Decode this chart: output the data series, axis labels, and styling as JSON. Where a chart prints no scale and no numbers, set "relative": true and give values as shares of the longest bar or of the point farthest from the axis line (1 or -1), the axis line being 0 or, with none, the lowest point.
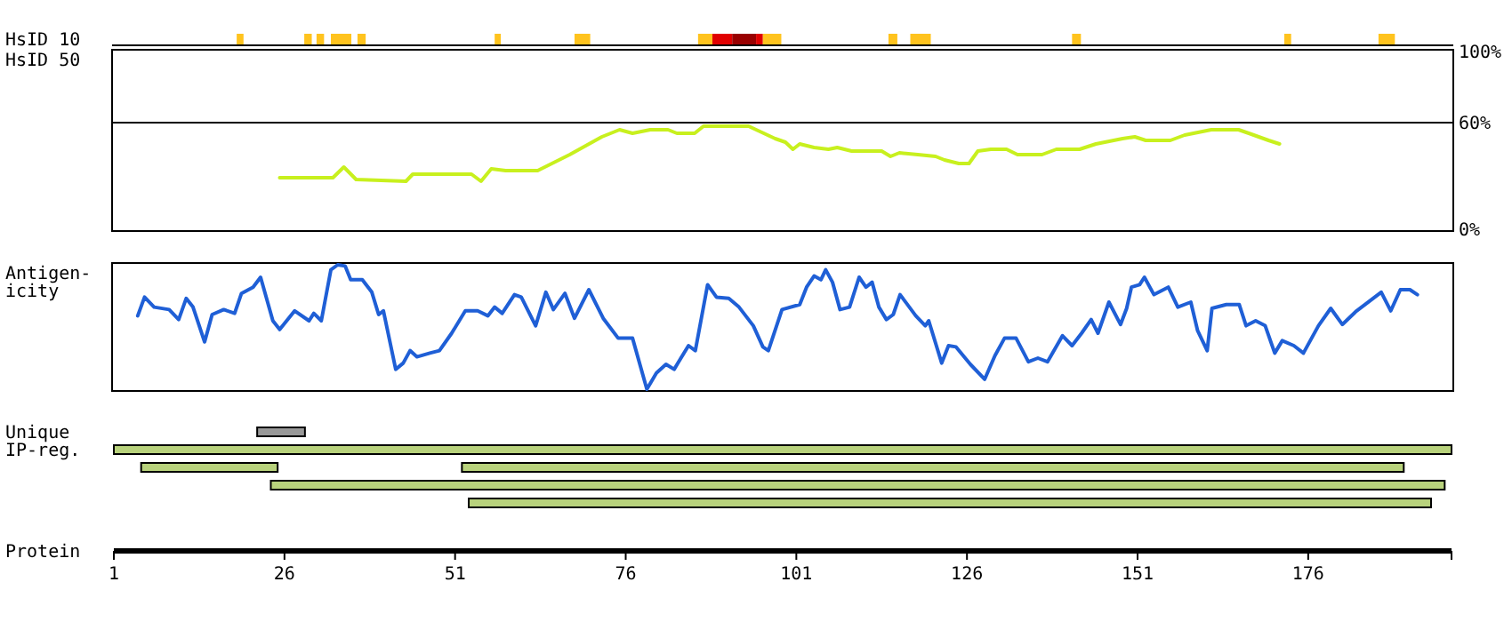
{
  "chart_data": [
    {
      "type": "bar",
      "orientation": "horizontal",
      "categories": [
        "HsID 10"
      ],
      "xlim": [
        1,
        197
      ],
      "tick_labels": "y",
      "series": [
        {
          "base": [
            19.0
          ],
          "values": [
            1.0
          ],
          "color": "#ffc31e"
        },
        {
          "base": [
            28.9
          ],
          "values": [
            1.1
          ],
          "color": "#ffc31e"
        },
        {
          "base": [
            30.7
          ],
          "values": [
            1.1
          ],
          "color": "#ffc31e"
        },
        {
          "base": [
            32.8
          ],
          "values": [
            3.0
          ],
          "color": "#ffc31e"
        },
        {
          "base": [
            36.7
          ],
          "values": [
            1.2
          ],
          "color": "#ffc31e"
        },
        {
          "base": [
            56.8
          ],
          "values": [
            0.9
          ],
          "color": "#ffc31e"
        },
        {
          "base": [
            68.5
          ],
          "values": [
            2.3
          ],
          "color": "#ffc31e"
        },
        {
          "base": [
            86.6
          ],
          "values": [
            2.1
          ],
          "color": "#ffc31e"
        },
        {
          "base": [
            88.7
          ],
          "values": [
            2.9
          ],
          "color": "#e00000"
        },
        {
          "base": [
            91.6
          ],
          "values": [
            3.5
          ],
          "color": "#990000"
        },
        {
          "base": [
            95.1
          ],
          "values": [
            1.0
          ],
          "color": "#e00000"
        },
        {
          "base": [
            96.1
          ],
          "values": [
            2.7
          ],
          "color": "#ffc31e"
        },
        {
          "base": [
            114.5
          ],
          "values": [
            1.3
          ],
          "color": "#ffc31e"
        },
        {
          "base": [
            117.7
          ],
          "values": [
            3.0
          ],
          "color": "#ffc31e"
        },
        {
          "base": [
            141.4
          ],
          "values": [
            1.3
          ],
          "color": "#ffc31e"
        },
        {
          "base": [
            172.5
          ],
          "values": [
            1.0
          ],
          "color": "#ffc31e"
        },
        {
          "base": [
            186.3
          ],
          "values": [
            2.4
          ],
          "color": "#ffc31e"
        }
      ]
    },
    {
      "type": "line",
      "ylabel": "HsID 50",
      "xlim": [
        1,
        197
      ],
      "ylim": [
        0,
        100
      ],
      "yticks": [
        {
          "value": 0,
          "label": "0%"
        },
        {
          "value": 60,
          "label": "60%"
        },
        {
          "value": 100,
          "label": "100%"
        }
      ],
      "tick_labels": "y",
      "ref_lines": [
        {
          "axis": "y",
          "value": 60,
          "color": "#000000"
        }
      ],
      "x": [
        25.3,
        33.1,
        34.7,
        36.5,
        43.8,
        44.8,
        53.4,
        54.8,
        56.3,
        58.4,
        63.1,
        67.8,
        72.5,
        75.1,
        77,
        79.6,
        82.2,
        83.5,
        86.1,
        87.4,
        94,
        97.9,
        99.4,
        100.5,
        101.5,
        103.6,
        105.7,
        107,
        109.1,
        113.5,
        114.8,
        116.1,
        118.8,
        121.4,
        122.7,
        124.8,
        126.3,
        127.6,
        129.5,
        131.8,
        133.4,
        137,
        139.1,
        142.5,
        144.9,
        148.8,
        150.6,
        152.2,
        155.8,
        157.9,
        161.8,
        165.8,
        167.3,
        170.2,
        171.8
      ],
      "series": [
        {
          "color": "#c8f01e",
          "values": [
            29,
            29,
            35,
            28,
            27,
            31,
            31,
            27,
            34,
            33,
            33,
            42,
            52,
            56,
            54,
            56,
            56,
            54,
            54,
            58,
            58,
            51,
            49,
            45,
            48,
            46,
            45,
            46,
            44,
            44,
            41,
            43,
            42,
            41,
            39,
            37,
            37,
            44,
            45,
            45,
            42,
            42,
            45,
            45,
            48,
            51,
            52,
            50,
            50,
            53,
            56,
            56,
            54,
            50,
            48
          ]
        }
      ]
    },
    {
      "type": "line",
      "ylabel": "Antigen-\nicity",
      "relative": true,
      "xlim": [
        1,
        197
      ],
      "tick_labels": false,
      "x": [
        4.5,
        5.5,
        6.9,
        9.1,
        10.5,
        11.6,
        12.6,
        14.3,
        15.4,
        17.1,
        18.7,
        19.7,
        21.4,
        22.5,
        24.3,
        25.3,
        27.5,
        29.6,
        30.3,
        31.4,
        32.8,
        33.8,
        34.9,
        35.7,
        37.4,
        38.8,
        39.8,
        40.5,
        42.3,
        43.4,
        44.4,
        45.4,
        47.3,
        48.7,
        50.5,
        52.5,
        54.3,
        55.8,
        56.8,
        57.9,
        59.7,
        60.7,
        62.8,
        64.3,
        65.4,
        67.1,
        68.5,
        70.6,
        72.7,
        74.9,
        77.0,
        79.1,
        80.5,
        81.9,
        83.1,
        85.2,
        86.2,
        88.0,
        89.3,
        91.1,
        92.6,
        94.7,
        96.1,
        96.9,
        98.9,
        101.5,
        102.5,
        103.6,
        104.6,
        105.3,
        106.3,
        107.4,
        108.8,
        110.2,
        111.2,
        112.1,
        113.1,
        114.2,
        115.2,
        116.2,
        118.5,
        119.9,
        120.4,
        122.3,
        123.3,
        124.4,
        126.5,
        128.6,
        130.1,
        131.5,
        133.2,
        135.0,
        136.4,
        137.8,
        140.0,
        141.4,
        142.8,
        144.2,
        145.2,
        146.8,
        148.5,
        149.4,
        150.1,
        151.3,
        152.0,
        153.4,
        155.5,
        156.9,
        158.8,
        159.8,
        161.2,
        161.9,
        164.0,
        165.9,
        166.9,
        168.3,
        169.7,
        171.1,
        172.2,
        173.9,
        175.3,
        177.5,
        179.3,
        181.0,
        183.1,
        186.7,
        188.1,
        189.5,
        190.9,
        192.0
      ],
      "series": [
        {
          "color": "#1f5fd6",
          "values": [
            0.59,
            0.74,
            0.66,
            0.64,
            0.56,
            0.73,
            0.66,
            0.38,
            0.6,
            0.64,
            0.61,
            0.77,
            0.82,
            0.9,
            0.55,
            0.48,
            0.63,
            0.55,
            0.61,
            0.55,
            0.96,
            1,
            0.99,
            0.88,
            0.88,
            0.78,
            0.6,
            0.63,
            0.16,
            0.21,
            0.31,
            0.26,
            0.29,
            0.31,
            0.45,
            0.63,
            0.63,
            0.59,
            0.66,
            0.61,
            0.76,
            0.74,
            0.51,
            0.78,
            0.64,
            0.77,
            0.57,
            0.8,
            0.57,
            0.41,
            0.41,
            0,
            0.13,
            0.2,
            0.16,
            0.35,
            0.31,
            0.84,
            0.74,
            0.73,
            0.66,
            0.51,
            0.34,
            0.31,
            0.64,
            0.68,
            0.82,
            0.91,
            0.88,
            0.96,
            0.86,
            0.64,
            0.66,
            0.9,
            0.82,
            0.86,
            0.66,
            0.56,
            0.6,
            0.76,
            0.59,
            0.51,
            0.55,
            0.21,
            0.35,
            0.34,
            0.2,
            0.08,
            0.27,
            0.41,
            0.41,
            0.22,
            0.25,
            0.22,
            0.43,
            0.35,
            0.45,
            0.56,
            0.45,
            0.7,
            0.52,
            0.65,
            0.82,
            0.84,
            0.9,
            0.76,
            0.82,
            0.66,
            0.7,
            0.47,
            0.31,
            0.65,
            0.68,
            0.68,
            0.51,
            0.55,
            0.51,
            0.29,
            0.39,
            0.35,
            0.29,
            0.51,
            0.65,
            0.52,
            0.63,
            0.78,
            0.63,
            0.8,
            0.8,
            0.76
          ]
        }
      ]
    },
    {
      "type": "bar",
      "orientation": "horizontal",
      "categories": [
        "Unique",
        "IP-reg.",
        null,
        null,
        null
      ],
      "xlim": [
        1,
        197
      ],
      "xticks": [
        1,
        26,
        51,
        76,
        101,
        126,
        151,
        176
      ],
      "xlabel": "Protein",
      "series": [
        {
          "base": [
            22,
            1,
            5,
            24,
            53
          ],
          "values": [
            7,
            196,
            20,
            172,
            141
          ],
          "colors": [
            "#999999",
            "#b8d27c",
            "#b8d27c",
            "#b8d27c",
            "#b8d27c"
          ]
        },
        {
          "base": [
            null,
            null,
            52,
            null,
            null
          ],
          "values": [
            null,
            null,
            138,
            null,
            null
          ],
          "color": "#b8d27c"
        }
      ]
    }
  ]
}
